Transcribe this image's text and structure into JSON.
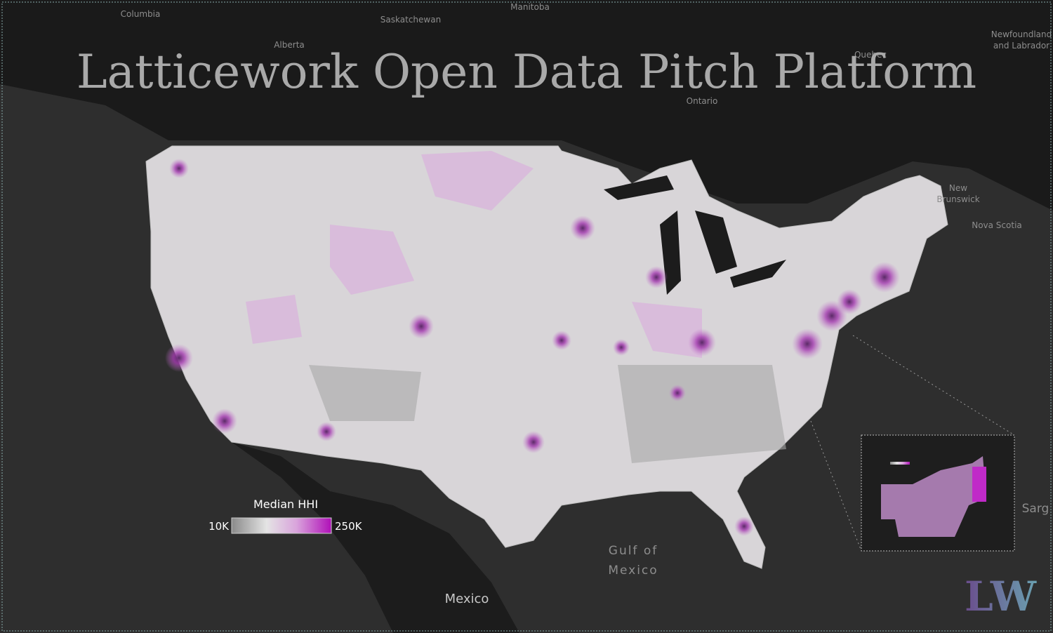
{
  "title": "Latticework Open Data Pitch Platform",
  "places": [
    "Columbia",
    "Saskatchewan",
    "Manitoba",
    "Alberta",
    "Quebec",
    "Newfoundland",
    "and Labrador",
    "Ontario",
    "New",
    "Brunswick",
    "Nova Scotia",
    "Gulf of",
    "Mexico",
    "Mexico",
    "Sarg"
  ],
  "legend": {
    "title": "Median HHI",
    "min_label": "10K",
    "max_label": "250K"
  },
  "logo": "LW"
}
